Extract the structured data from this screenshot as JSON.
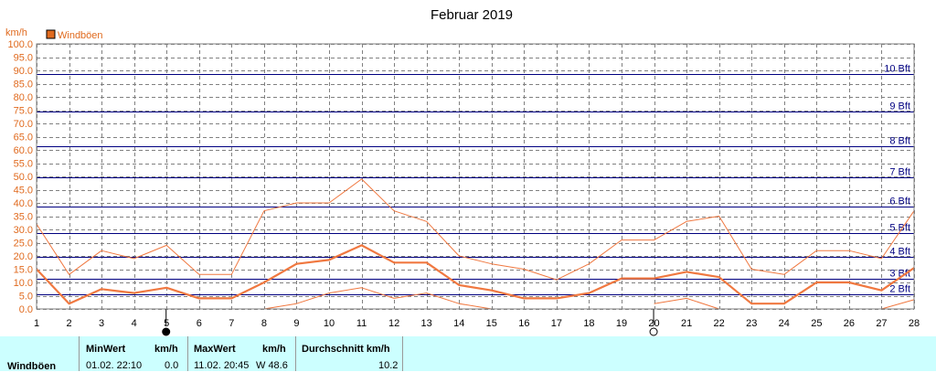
{
  "chart_data": {
    "type": "line",
    "title": "Februar 2019",
    "ylabel": "km/h",
    "ylim": [
      0,
      100
    ],
    "yticks": [
      "0.0",
      "5.0",
      "10.0",
      "15.0",
      "20.0",
      "25.0",
      "30.0",
      "35.0",
      "40.0",
      "45.0",
      "50.0",
      "55.0",
      "60.0",
      "65.0",
      "70.0",
      "75.0",
      "80.0",
      "85.0",
      "90.0",
      "95.0",
      "100.0"
    ],
    "x": [
      1,
      2,
      3,
      4,
      5,
      6,
      7,
      8,
      9,
      10,
      11,
      12,
      13,
      14,
      15,
      16,
      17,
      18,
      19,
      20,
      21,
      22,
      23,
      24,
      25,
      26,
      27,
      28
    ],
    "xlim": [
      1,
      28
    ],
    "xticks": [
      "1",
      "2",
      "3",
      "4",
      "5",
      "6",
      "7",
      "8",
      "9",
      "10",
      "11",
      "12",
      "13",
      "14",
      "15",
      "16",
      "17",
      "18",
      "19",
      "20",
      "21",
      "22",
      "23",
      "24",
      "25",
      "26",
      "27",
      "28"
    ],
    "legend": "top-left",
    "grid": true,
    "series": [
      {
        "name": "Windböen",
        "role": "average",
        "values": [
          15,
          2,
          7.5,
          6,
          8,
          4,
          4,
          10,
          17,
          18.5,
          24,
          17.5,
          17.5,
          9,
          7,
          4,
          4,
          6,
          11.5,
          11.5,
          14,
          12,
          2,
          2,
          10,
          10,
          7,
          15.5
        ]
      },
      {
        "role": "max",
        "values": [
          32,
          13,
          22,
          19,
          24,
          13,
          13,
          37,
          40,
          40,
          49,
          37,
          33,
          20,
          17,
          15,
          11,
          17,
          26,
          26,
          33,
          35,
          15,
          13,
          22,
          22,
          19,
          37
        ]
      },
      {
        "role": "min",
        "values": [
          null,
          null,
          null,
          null,
          null,
          null,
          null,
          0,
          2,
          6,
          8,
          4,
          6,
          2,
          0,
          null,
          null,
          null,
          null,
          2,
          4,
          0,
          null,
          null,
          null,
          null,
          0,
          3.5
        ]
      }
    ],
    "beaufort": [
      {
        "label": "2 Bft",
        "value": 5.5
      },
      {
        "label": "3 Bft",
        "value": 11.5
      },
      {
        "label": "4 Bft",
        "value": 19.5
      },
      {
        "label": "5 Bft",
        "value": 28.5
      },
      {
        "label": "6 Bft",
        "value": 38.5
      },
      {
        "label": "7 Bft",
        "value": 49.5
      },
      {
        "label": "8 Bft",
        "value": 61.5
      },
      {
        "label": "9 Bft",
        "value": 74.5
      },
      {
        "label": "10 Bft",
        "value": 88.5
      }
    ],
    "moon_phases": [
      {
        "day": 5,
        "phase": "new-moon"
      },
      {
        "day": 20,
        "phase": "full-moon"
      }
    ],
    "colors": {
      "series": "#F07840",
      "series_fill": "#E06A1E",
      "bft_line": "#000080",
      "grid": "#808080",
      "axis_text": "#E06A1E",
      "summary_bg": "#CCFFFF"
    }
  },
  "summary": {
    "row_label": "Windböen",
    "min_header": "MinWert",
    "min_unit": "km/h",
    "min_time": "01.02.  22:10",
    "min_value": "0.0",
    "max_header": "MaxWert",
    "max_unit": "km/h",
    "max_time": "11.02.  20:45",
    "max_value": "W 48.6",
    "avg_header": "Durchschnitt km/h",
    "avg_value": "10.2"
  }
}
